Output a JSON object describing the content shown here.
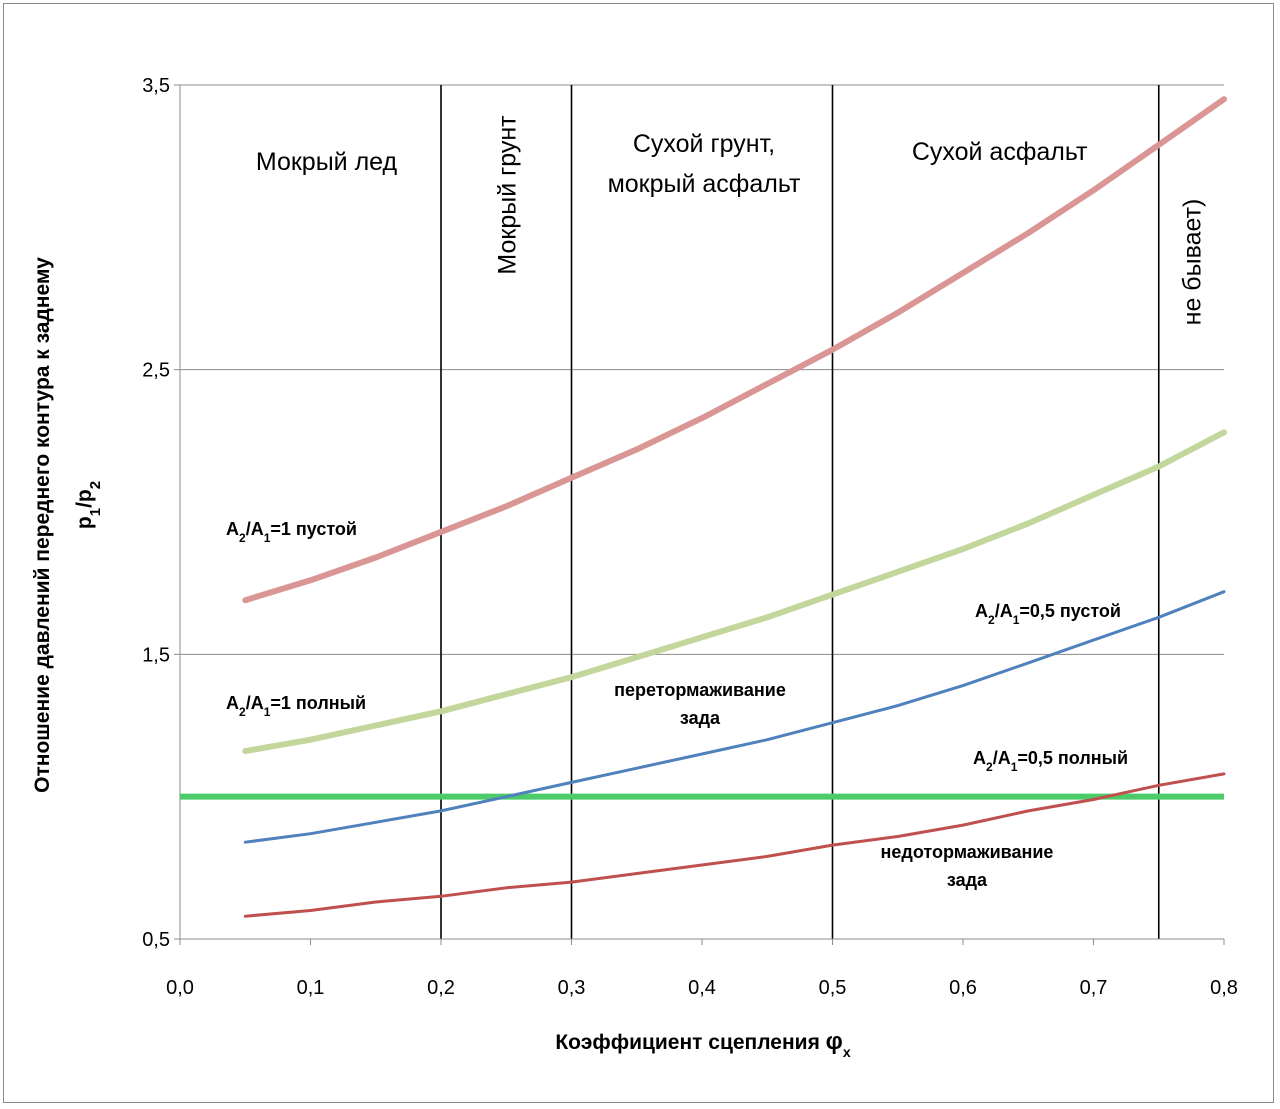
{
  "chart_data": {
    "type": "line",
    "xlabel": "Коэффициент сцепления",
    "xlabel_symbol": "φ",
    "xlabel_sub": "x",
    "ylabel_line1": "Отношение давлений переднего контура к заднему",
    "ylabel_line2": {
      "p1": "p",
      "s1": "1",
      "slash": "/",
      "p2": "p",
      "s2": "2"
    },
    "xlim": [
      0,
      0.8
    ],
    "ylim": [
      0.5,
      3.5
    ],
    "x_ticks": [
      {
        "v": 0.0,
        "label": "0,0"
      },
      {
        "v": 0.1,
        "label": "0,1"
      },
      {
        "v": 0.2,
        "label": "0,2"
      },
      {
        "v": 0.3,
        "label": "0,3"
      },
      {
        "v": 0.4,
        "label": "0,4"
      },
      {
        "v": 0.5,
        "label": "0,5"
      },
      {
        "v": 0.6,
        "label": "0,6"
      },
      {
        "v": 0.7,
        "label": "0,7"
      },
      {
        "v": 0.8,
        "label": "0,8"
      }
    ],
    "y_ticks": [
      {
        "v": 0.5,
        "label": "0,5"
      },
      {
        "v": 1.5,
        "label": "1,5"
      },
      {
        "v": 2.5,
        "label": "2,5"
      },
      {
        "v": 3.5,
        "label": "3,5"
      }
    ],
    "grid": "horizontal",
    "zone_boundaries": [
      0.2,
      0.3,
      0.5,
      0.75
    ],
    "zones": [
      {
        "lines": [
          "Мокрый лед"
        ],
        "vertical": false
      },
      {
        "lines": [
          "Мокрый грунт"
        ],
        "vertical": true
      },
      {
        "lines": [
          "Сухой грунт,",
          "мокрый асфальт"
        ],
        "vertical": false
      },
      {
        "lines": [
          "Сухой асфальт"
        ],
        "vertical": false
      },
      {
        "lines": [
          "не бывает)"
        ],
        "vertical": true
      }
    ],
    "series": [
      {
        "label": {
          "a": "A",
          "s2": "2",
          "sl": "/A",
          "s1": "1",
          "rest": "=1 пустой"
        },
        "color": "#d99694",
        "x": [
          0.05,
          0.1,
          0.15,
          0.2,
          0.25,
          0.3,
          0.35,
          0.4,
          0.45,
          0.5,
          0.55,
          0.6,
          0.65,
          0.7,
          0.75,
          0.8
        ],
        "y": [
          1.69,
          1.76,
          1.84,
          1.93,
          2.02,
          2.12,
          2.22,
          2.33,
          2.45,
          2.57,
          2.7,
          2.84,
          2.98,
          3.13,
          3.29,
          3.45
        ]
      },
      {
        "label": {
          "a": "A",
          "s2": "2",
          "sl": "/A",
          "s1": "1",
          "rest": "=1 полный"
        },
        "color": "#c3d69b",
        "x": [
          0.05,
          0.1,
          0.15,
          0.2,
          0.25,
          0.3,
          0.35,
          0.4,
          0.45,
          0.5,
          0.55,
          0.6,
          0.65,
          0.7,
          0.75,
          0.8
        ],
        "y": [
          1.16,
          1.2,
          1.25,
          1.3,
          1.36,
          1.42,
          1.49,
          1.56,
          1.63,
          1.71,
          1.79,
          1.87,
          1.96,
          2.06,
          2.16,
          2.28
        ]
      },
      {
        "label": {
          "a": "A",
          "s2": "2",
          "sl": "/A",
          "s1": "1",
          "rest": "=0,5 пустой"
        },
        "color": "#4f81bd",
        "x": [
          0.05,
          0.1,
          0.15,
          0.2,
          0.25,
          0.3,
          0.35,
          0.4,
          0.45,
          0.5,
          0.55,
          0.6,
          0.65,
          0.7,
          0.75,
          0.8
        ],
        "y": [
          0.84,
          0.87,
          0.91,
          0.95,
          1.0,
          1.05,
          1.1,
          1.15,
          1.2,
          1.26,
          1.32,
          1.39,
          1.47,
          1.55,
          1.63,
          1.72
        ]
      },
      {
        "label": {
          "a": "A",
          "s2": "2",
          "sl": "/A",
          "s1": "1",
          "rest": "=0,5 полный"
        },
        "color": "#c0504d",
        "x": [
          0.05,
          0.1,
          0.15,
          0.2,
          0.25,
          0.3,
          0.35,
          0.4,
          0.45,
          0.5,
          0.55,
          0.6,
          0.65,
          0.7,
          0.75,
          0.8
        ],
        "y": [
          0.58,
          0.6,
          0.63,
          0.65,
          0.68,
          0.7,
          0.73,
          0.76,
          0.79,
          0.83,
          0.86,
          0.9,
          0.95,
          0.99,
          1.04,
          1.08
        ]
      }
    ],
    "reference_line": {
      "y": 1.0,
      "color": "#4ccb6a"
    },
    "annotations": [
      {
        "lines": [
          "перетормаживание",
          "зада"
        ]
      },
      {
        "lines": [
          "недотормаживание",
          "зада"
        ]
      }
    ]
  }
}
